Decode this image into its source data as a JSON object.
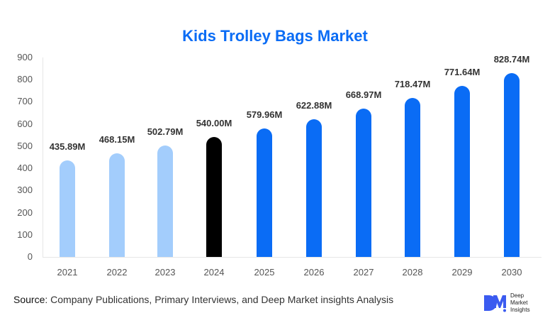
{
  "title": "Kids Trolley Bags Market",
  "chart_data": {
    "type": "bar",
    "title": "Kids Trolley Bags Market",
    "xlabel": "",
    "ylabel": "",
    "ylim": [
      0,
      900
    ],
    "yticks": [
      0,
      100,
      200,
      300,
      400,
      500,
      600,
      700,
      800,
      900
    ],
    "grid": false,
    "legend": null,
    "categories": [
      "2021",
      "2022",
      "2023",
      "2024",
      "2025",
      "2026",
      "2027",
      "2028",
      "2029",
      "2030"
    ],
    "values": [
      435.89,
      468.15,
      502.79,
      540.0,
      579.96,
      622.88,
      668.97,
      718.47,
      771.64,
      828.74
    ],
    "labels": [
      "435.89M",
      "468.15M",
      "502.79M",
      "540.00M",
      "579.96M",
      "622.88M",
      "668.97M",
      "718.47M",
      "771.64M",
      "828.74M"
    ],
    "unit": "M",
    "bar_colors": [
      "#a3cdfc",
      "#a3cdfc",
      "#a3cdfc",
      "#000000",
      "#0a6cf5",
      "#0a6cf5",
      "#0a6cf5",
      "#0a6cf5",
      "#0a6cf5",
      "#0a6cf5"
    ],
    "color_legend_implied": {
      "historical": "#a3cdfc",
      "base_year": "#000000",
      "forecast": "#0a6cf5"
    }
  },
  "source": {
    "label": "Source",
    "text": ": Company Publications, Primary Interviews, and Deep Market insights Analysis"
  },
  "logo": {
    "mark": "DM",
    "line1": "Deep",
    "line2": "Market",
    "line3": "Insights",
    "color": "#3b5bf0"
  }
}
